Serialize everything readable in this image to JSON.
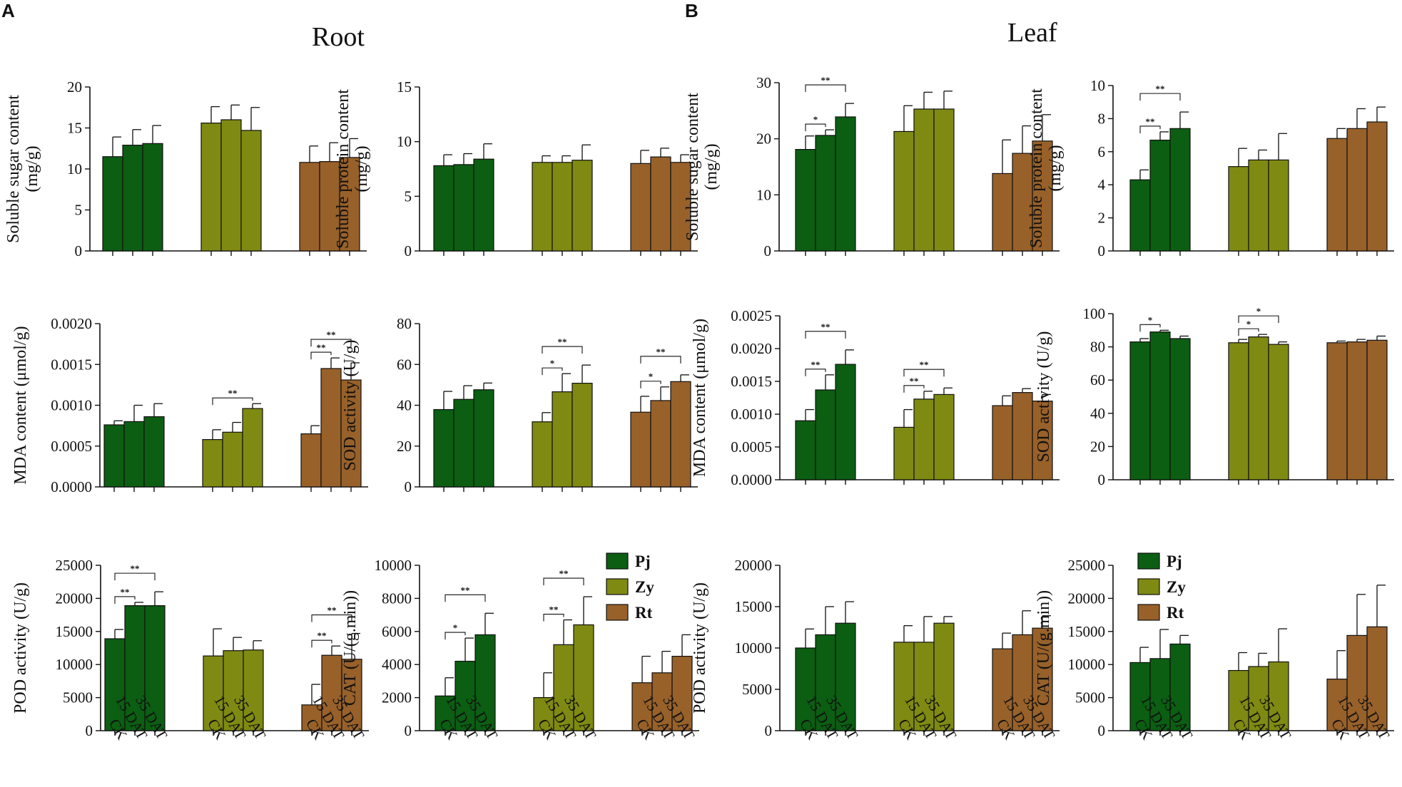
{
  "panel_a": {
    "letter": "A",
    "title": "Root"
  },
  "panel_b": {
    "letter": "B",
    "title": "Leaf"
  },
  "groups": [
    "Pj",
    "Zy",
    "Rt"
  ],
  "colors": {
    "Pj": "#0b5e12",
    "Zy": "#7f8a12",
    "Rt": "#98612a",
    "axis": "#111111"
  },
  "x_labels": [
    "CK",
    "15 DAT",
    "35 DAT"
  ],
  "chart_data": [
    {
      "id": "root-sugar",
      "type": "bar",
      "panel": "Root",
      "ylabel": "Soluble sugar content\n(mg/g)",
      "ylim": [
        0,
        20
      ],
      "yticks": [
        "0",
        "5",
        "10",
        "15",
        "20"
      ],
      "series": [
        {
          "name": "Pj",
          "values": [
            11.5,
            12.9,
            13.1
          ],
          "errors": [
            2.4,
            1.9,
            2.2
          ]
        },
        {
          "name": "Zy",
          "values": [
            15.6,
            16.0,
            14.7
          ],
          "errors": [
            2.0,
            1.8,
            2.8
          ]
        },
        {
          "name": "Rt",
          "values": [
            10.8,
            10.9,
            11.4
          ],
          "errors": [
            2.0,
            2.3,
            2.3
          ]
        }
      ],
      "sig": []
    },
    {
      "id": "root-protein",
      "type": "bar",
      "panel": "Root",
      "ylabel": "Soluble protein content\n(mg/g)",
      "ylim": [
        0,
        15
      ],
      "yticks": [
        "0",
        "5",
        "10",
        "15"
      ],
      "series": [
        {
          "name": "Pj",
          "values": [
            7.8,
            7.9,
            8.4
          ],
          "errors": [
            1.0,
            1.0,
            1.4
          ]
        },
        {
          "name": "Zy",
          "values": [
            8.1,
            8.1,
            8.3
          ],
          "errors": [
            0.6,
            0.6,
            1.4
          ]
        },
        {
          "name": "Rt",
          "values": [
            8.0,
            8.6,
            8.1
          ],
          "errors": [
            1.2,
            0.8,
            0.7
          ]
        }
      ],
      "sig": []
    },
    {
      "id": "root-mda",
      "type": "bar",
      "panel": "Root",
      "ylabel": "MDA content (μmol/g)",
      "ylim": [
        0,
        0.002
      ],
      "yticks": [
        "0.0000",
        "0.0005",
        "0.0010",
        "0.0015",
        "0.0020"
      ],
      "series": [
        {
          "name": "Pj",
          "values": [
            0.00076,
            0.0008,
            0.00086
          ],
          "errors": [
            5e-05,
            0.0002,
            0.00016
          ]
        },
        {
          "name": "Zy",
          "values": [
            0.00058,
            0.00067,
            0.00096
          ],
          "errors": [
            0.00012,
            0.00012,
            6e-05
          ]
        },
        {
          "name": "Rt",
          "values": [
            0.00065,
            0.00145,
            0.00131
          ],
          "errors": [
            0.0001,
            0.00013,
            0.00021
          ]
        }
      ],
      "sig": [
        {
          "group": 1,
          "from": 0,
          "to": 2,
          "text": "**",
          "level": 1
        },
        {
          "group": 2,
          "from": 0,
          "to": 1,
          "text": "**",
          "level": 1
        },
        {
          "group": 2,
          "from": 0,
          "to": 2,
          "text": "**",
          "level": 2
        }
      ]
    },
    {
      "id": "root-sod",
      "type": "bar",
      "panel": "Root",
      "ylabel": "SOD activity (U/g)",
      "ylim": [
        0,
        80
      ],
      "yticks": [
        "0",
        "20",
        "40",
        "60",
        "80"
      ],
      "series": [
        {
          "name": "Pj",
          "values": [
            37.9,
            42.9,
            47.6
          ],
          "errors": [
            8.9,
            6.7,
            3.3
          ]
        },
        {
          "name": "Zy",
          "values": [
            31.9,
            46.6,
            50.8
          ],
          "errors": [
            4.5,
            8.9,
            8.9
          ]
        },
        {
          "name": "Rt",
          "values": [
            36.6,
            42.3,
            51.6
          ],
          "errors": [
            7.8,
            6.7,
            3.3
          ]
        }
      ],
      "sig": [
        {
          "group": 1,
          "from": 0,
          "to": 1,
          "text": "*",
          "level": 1
        },
        {
          "group": 1,
          "from": 0,
          "to": 2,
          "text": "**",
          "level": 2
        },
        {
          "group": 2,
          "from": 0,
          "to": 1,
          "text": "*",
          "level": 1
        },
        {
          "group": 2,
          "from": 0,
          "to": 2,
          "text": "**",
          "level": 2
        }
      ]
    },
    {
      "id": "root-pod",
      "type": "bar",
      "panel": "Root",
      "ylabel": "POD activity (U/g)",
      "ylim": [
        0,
        25000
      ],
      "yticks": [
        "0",
        "5000",
        "10000",
        "15000",
        "20000",
        "25000"
      ],
      "series": [
        {
          "name": "Pj",
          "values": [
            13900,
            18900,
            18900
          ],
          "errors": [
            1400,
            500,
            2100
          ]
        },
        {
          "name": "Zy",
          "values": [
            11300,
            12100,
            12200
          ],
          "errors": [
            4100,
            2000,
            1400
          ]
        },
        {
          "name": "Rt",
          "values": [
            3900,
            11400,
            10800
          ],
          "errors": [
            3100,
            1400,
            3900
          ]
        }
      ],
      "sig": [
        {
          "group": 0,
          "from": 0,
          "to": 1,
          "text": "**",
          "level": 1
        },
        {
          "group": 0,
          "from": 0,
          "to": 2,
          "text": "**",
          "level": 2
        },
        {
          "group": 2,
          "from": 0,
          "to": 1,
          "text": "**",
          "level": 1
        },
        {
          "group": 2,
          "from": 0,
          "to": 2,
          "text": "**",
          "level": 2
        }
      ]
    },
    {
      "id": "root-cat",
      "type": "bar",
      "panel": "Root",
      "ylabel": "CAT (U/(g.min))",
      "ylim": [
        0,
        10000
      ],
      "yticks": [
        "0",
        "2000",
        "4000",
        "6000",
        "8000",
        "10000"
      ],
      "legend": true,
      "series": [
        {
          "name": "Pj",
          "values": [
            2100,
            4200,
            5800
          ],
          "errors": [
            1100,
            1400,
            1300
          ]
        },
        {
          "name": "Zy",
          "values": [
            2000,
            5200,
            6400
          ],
          "errors": [
            1500,
            1500,
            1700
          ]
        },
        {
          "name": "Rt",
          "values": [
            2900,
            3500,
            4500
          ],
          "errors": [
            1600,
            1300,
            1300
          ]
        }
      ],
      "sig": [
        {
          "group": 0,
          "from": 0,
          "to": 1,
          "text": "*",
          "level": 1
        },
        {
          "group": 0,
          "from": 0,
          "to": 2,
          "text": "**",
          "level": 2
        },
        {
          "group": 1,
          "from": 0,
          "to": 1,
          "text": "**",
          "level": 1
        },
        {
          "group": 1,
          "from": 0,
          "to": 2,
          "text": "**",
          "level": 2
        }
      ]
    },
    {
      "id": "leaf-sugar",
      "type": "bar",
      "panel": "Leaf",
      "ylabel": "Soluble sugar content\n(mg/g)",
      "ylim": [
        0,
        30
      ],
      "yticks": [
        "0",
        "10",
        "20",
        "30"
      ],
      "series": [
        {
          "name": "Pj",
          "values": [
            18.1,
            20.6,
            23.9
          ],
          "errors": [
            2.4,
            1.0,
            2.4
          ]
        },
        {
          "name": "Zy",
          "values": [
            21.3,
            25.3,
            25.3
          ],
          "errors": [
            4.6,
            3.0,
            3.2
          ]
        },
        {
          "name": "Rt",
          "values": [
            13.8,
            17.4,
            19.6
          ],
          "errors": [
            6.0,
            4.9,
            4.7
          ]
        }
      ],
      "sig": [
        {
          "group": 0,
          "from": 0,
          "to": 1,
          "text": "*",
          "level": 1
        },
        {
          "group": 0,
          "from": 0,
          "to": 2,
          "text": "**",
          "level": 2
        }
      ]
    },
    {
      "id": "leaf-protein",
      "type": "bar",
      "panel": "Leaf",
      "ylabel": "Soluble protein content\n(mg/g)",
      "ylim": [
        0,
        10
      ],
      "yticks": [
        "0",
        "2",
        "4",
        "6",
        "8",
        "10"
      ],
      "series": [
        {
          "name": "Pj",
          "values": [
            4.3,
            6.7,
            7.4
          ],
          "errors": [
            0.6,
            0.5,
            1.0
          ]
        },
        {
          "name": "Zy",
          "values": [
            5.1,
            5.5,
            5.5
          ],
          "errors": [
            1.1,
            0.6,
            1.6
          ]
        },
        {
          "name": "Rt",
          "values": [
            6.8,
            7.4,
            7.8
          ],
          "errors": [
            0.6,
            1.2,
            0.9
          ]
        }
      ],
      "sig": [
        {
          "group": 0,
          "from": 0,
          "to": 1,
          "text": "**",
          "level": 1
        },
        {
          "group": 0,
          "from": 0,
          "to": 2,
          "text": "**",
          "level": 2
        }
      ]
    },
    {
      "id": "leaf-mda",
      "type": "bar",
      "panel": "Leaf",
      "ylabel": "MDA content (μmol/g)",
      "ylim": [
        0,
        0.0025
      ],
      "yticks": [
        "0.0000",
        "0.0005",
        "0.0010",
        "0.0015",
        "0.0020",
        "0.0025"
      ],
      "series": [
        {
          "name": "Pj",
          "values": [
            0.0009,
            0.00137,
            0.00176
          ],
          "errors": [
            0.00017,
            0.00023,
            0.00022
          ]
        },
        {
          "name": "Zy",
          "values": [
            0.0008,
            0.00123,
            0.0013
          ],
          "errors": [
            0.00027,
            0.00012,
            0.0001
          ]
        },
        {
          "name": "Rt",
          "values": [
            0.00113,
            0.00133,
            0.0012
          ],
          "errors": [
            0.00015,
            6e-05,
            0.0001
          ]
        }
      ],
      "sig": [
        {
          "group": 0,
          "from": 0,
          "to": 1,
          "text": "**",
          "level": 1
        },
        {
          "group": 0,
          "from": 0,
          "to": 2,
          "text": "**",
          "level": 2
        },
        {
          "group": 1,
          "from": 0,
          "to": 1,
          "text": "**",
          "level": 1
        },
        {
          "group": 1,
          "from": 0,
          "to": 2,
          "text": "**",
          "level": 2
        }
      ]
    },
    {
      "id": "leaf-sod",
      "type": "bar",
      "panel": "Leaf",
      "ylabel": "SOD activity (U/g)",
      "ylim": [
        0,
        100
      ],
      "yticks": [
        "0",
        "20",
        "40",
        "60",
        "80",
        "100"
      ],
      "series": [
        {
          "name": "Pj",
          "values": [
            83,
            89,
            85
          ],
          "errors": [
            2,
            1,
            1.5
          ]
        },
        {
          "name": "Zy",
          "values": [
            82.5,
            86,
            81.5
          ],
          "errors": [
            2,
            1.5,
            1.5
          ]
        },
        {
          "name": "Rt",
          "values": [
            82.5,
            83,
            84
          ],
          "errors": [
            1,
            1.5,
            2.5
          ]
        }
      ],
      "sig": [
        {
          "group": 0,
          "from": 0,
          "to": 1,
          "text": "*",
          "level": 1
        },
        {
          "group": 1,
          "from": 0,
          "to": 1,
          "text": "*",
          "level": 1
        },
        {
          "group": 1,
          "from": 0,
          "to": 2,
          "text": "*",
          "level": 2
        }
      ]
    },
    {
      "id": "leaf-pod",
      "type": "bar",
      "panel": "Leaf",
      "ylabel": "POD activity (U/g)",
      "ylim": [
        0,
        20000
      ],
      "yticks": [
        "0",
        "5000",
        "10000",
        "15000",
        "20000"
      ],
      "series": [
        {
          "name": "Pj",
          "values": [
            10000,
            11600,
            13000
          ],
          "errors": [
            2300,
            3400,
            2600
          ]
        },
        {
          "name": "Zy",
          "values": [
            10700,
            10700,
            13000
          ],
          "errors": [
            2000,
            3100,
            800
          ]
        },
        {
          "name": "Rt",
          "values": [
            9900,
            11600,
            12400
          ],
          "errors": [
            1900,
            2900,
            1500
          ]
        }
      ],
      "sig": []
    },
    {
      "id": "leaf-cat",
      "type": "bar",
      "panel": "Leaf",
      "ylabel": "CAT (U/(g.min))",
      "ylim": [
        0,
        25000
      ],
      "yticks": [
        "0",
        "5000",
        "10000",
        "15000",
        "20000",
        "25000"
      ],
      "legend": true,
      "series": [
        {
          "name": "Pj",
          "values": [
            10300,
            10900,
            13100
          ],
          "errors": [
            2300,
            4400,
            1300
          ]
        },
        {
          "name": "Zy",
          "values": [
            9100,
            9700,
            10400
          ],
          "errors": [
            2700,
            2000,
            5000
          ]
        },
        {
          "name": "Rt",
          "values": [
            7800,
            14400,
            15700
          ],
          "errors": [
            4300,
            6200,
            6300
          ]
        }
      ],
      "sig": []
    }
  ]
}
